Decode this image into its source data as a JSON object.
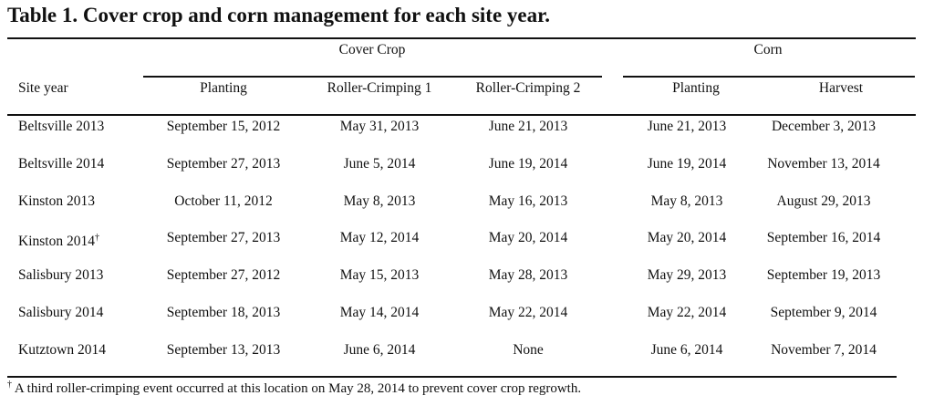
{
  "title": "Table 1. Cover crop and corn management for each site year.",
  "groups": {
    "cover_crop": "Cover Crop",
    "corn": "Corn"
  },
  "headers": {
    "site_year": "Site year",
    "cc_planting": "Planting",
    "roller_crimping_1": "Roller-Crimping 1",
    "roller_crimping_2": "Roller-Crimping 2",
    "corn_planting": "Planting",
    "harvest": "Harvest"
  },
  "rows": [
    {
      "site": "Beltsville 2013",
      "mark": "",
      "cc_planting": "September 15, 2012",
      "rc1": "May 31, 2013",
      "rc2": "June 21, 2013",
      "corn_planting": "June 21, 2013",
      "harvest": "December 3, 2013"
    },
    {
      "site": "Beltsville 2014",
      "mark": "",
      "cc_planting": "September 27, 2013",
      "rc1": "June 5, 2014",
      "rc2": "June 19, 2014",
      "corn_planting": "June 19, 2014",
      "harvest": "November 13, 2014"
    },
    {
      "site": "Kinston 2013",
      "mark": "",
      "cc_planting": "October 11, 2012",
      "rc1": "May 8, 2013",
      "rc2": "May 16, 2013",
      "corn_planting": "May 8, 2013",
      "harvest": "August 29, 2013"
    },
    {
      "site": "Kinston 2014",
      "mark": "†",
      "cc_planting": "September 27, 2013",
      "rc1": "May 12, 2014",
      "rc2": "May 20, 2014",
      "corn_planting": "May 20, 2014",
      "harvest": "September 16, 2014"
    },
    {
      "site": "Salisbury 2013",
      "mark": "",
      "cc_planting": "September 27, 2012",
      "rc1": "May 15, 2013",
      "rc2": "May 28, 2013",
      "corn_planting": "May 29, 2013",
      "harvest": "September 19, 2013"
    },
    {
      "site": "Salisbury 2014",
      "mark": "",
      "cc_planting": "September 18, 2013",
      "rc1": "May 14, 2014",
      "rc2": "May 22, 2014",
      "corn_planting": "May 22, 2014",
      "harvest": "September 9, 2014"
    },
    {
      "site": "Kutztown 2014",
      "mark": "",
      "cc_planting": "September 13, 2013",
      "rc1": "June 6, 2014",
      "rc2": "None",
      "corn_planting": "June 6, 2014",
      "harvest": "November 7, 2014"
    }
  ],
  "footnote": {
    "mark": "†",
    "text": " A third roller-crimping event occurred at this location on May 28, 2014 to prevent cover crop regrowth."
  }
}
